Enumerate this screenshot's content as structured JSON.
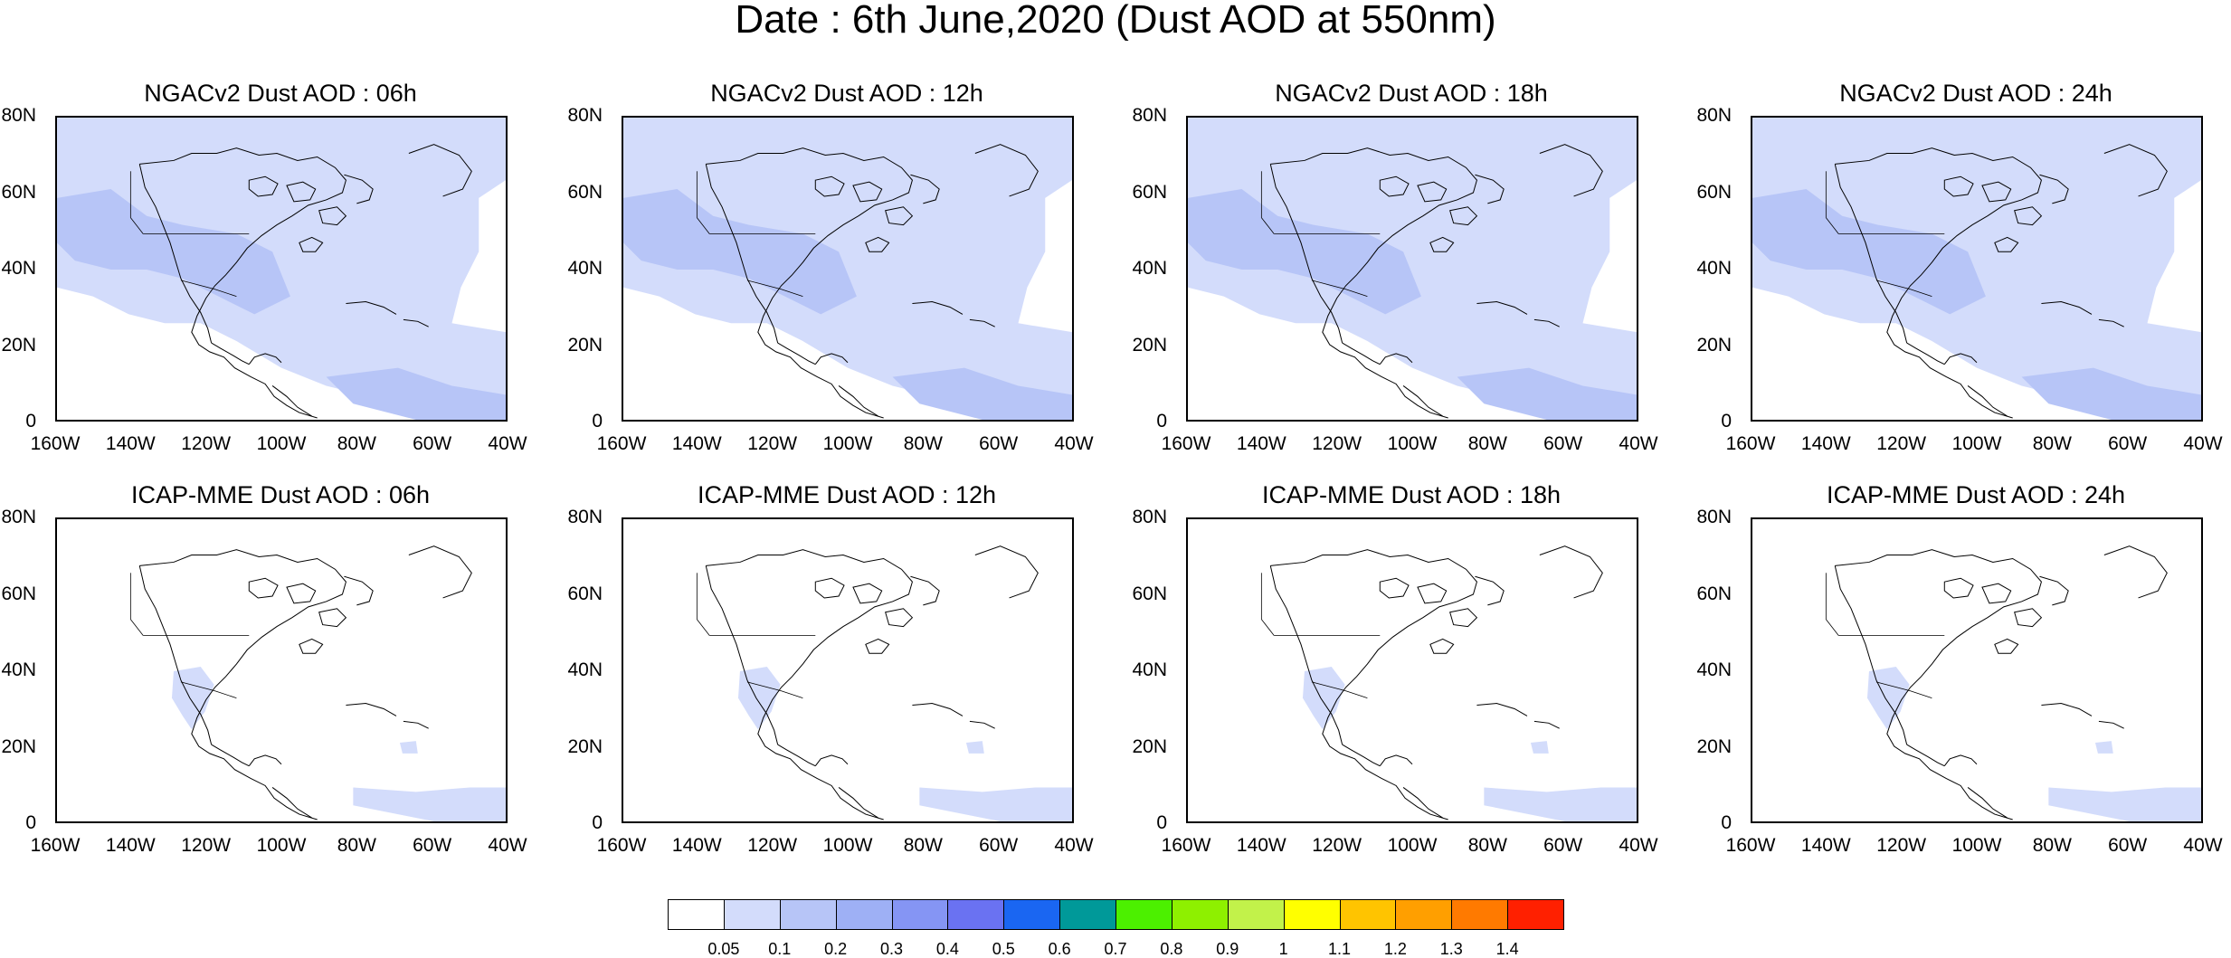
{
  "figure_title": "Date : 6th June,2020 (Dust AOD at 550nm)",
  "lat_labels": [
    "80N",
    "60N",
    "40N",
    "20N",
    "0"
  ],
  "lon_labels": [
    "160W",
    "140W",
    "120W",
    "100W",
    "80W",
    "60W",
    "40W"
  ],
  "panels": [
    {
      "title": "NGACv2 Dust AOD : 06h",
      "model": "NGACv2",
      "hour": "06h"
    },
    {
      "title": "NGACv2 Dust AOD : 12h",
      "model": "NGACv2",
      "hour": "12h"
    },
    {
      "title": "NGACv2 Dust AOD : 18h",
      "model": "NGACv2",
      "hour": "18h"
    },
    {
      "title": "NGACv2 Dust AOD : 24h",
      "model": "NGACv2",
      "hour": "24h"
    },
    {
      "title": "ICAP-MME Dust AOD : 06h",
      "model": "ICAP-MME",
      "hour": "06h"
    },
    {
      "title": "ICAP-MME Dust AOD : 12h",
      "model": "ICAP-MME",
      "hour": "12h"
    },
    {
      "title": "ICAP-MME Dust AOD : 18h",
      "model": "ICAP-MME",
      "hour": "18h"
    },
    {
      "title": "ICAP-MME Dust AOD : 24h",
      "model": "ICAP-MME",
      "hour": "24h"
    }
  ],
  "colorbar": {
    "labels": [
      "0.05",
      "0.1",
      "0.2",
      "0.3",
      "0.4",
      "0.5",
      "0.6",
      "0.7",
      "0.8",
      "0.9",
      "1",
      "1.1",
      "1.2",
      "1.3",
      "1.4"
    ],
    "colors": [
      "#ffffff",
      "#d3dcfb",
      "#b7c5f7",
      "#9eb0f5",
      "#8595f4",
      "#6a72f2",
      "#1a66f2",
      "#009999",
      "#4cf000",
      "#8ef000",
      "#c2f24a",
      "#ffff00",
      "#ffc400",
      "#ff9f00",
      "#ff7a00",
      "#ff2000"
    ]
  },
  "colors": {
    "light_dust": "#d3dcfb",
    "medium_dust": "#b7c5f7",
    "coastline": "#000000"
  }
}
